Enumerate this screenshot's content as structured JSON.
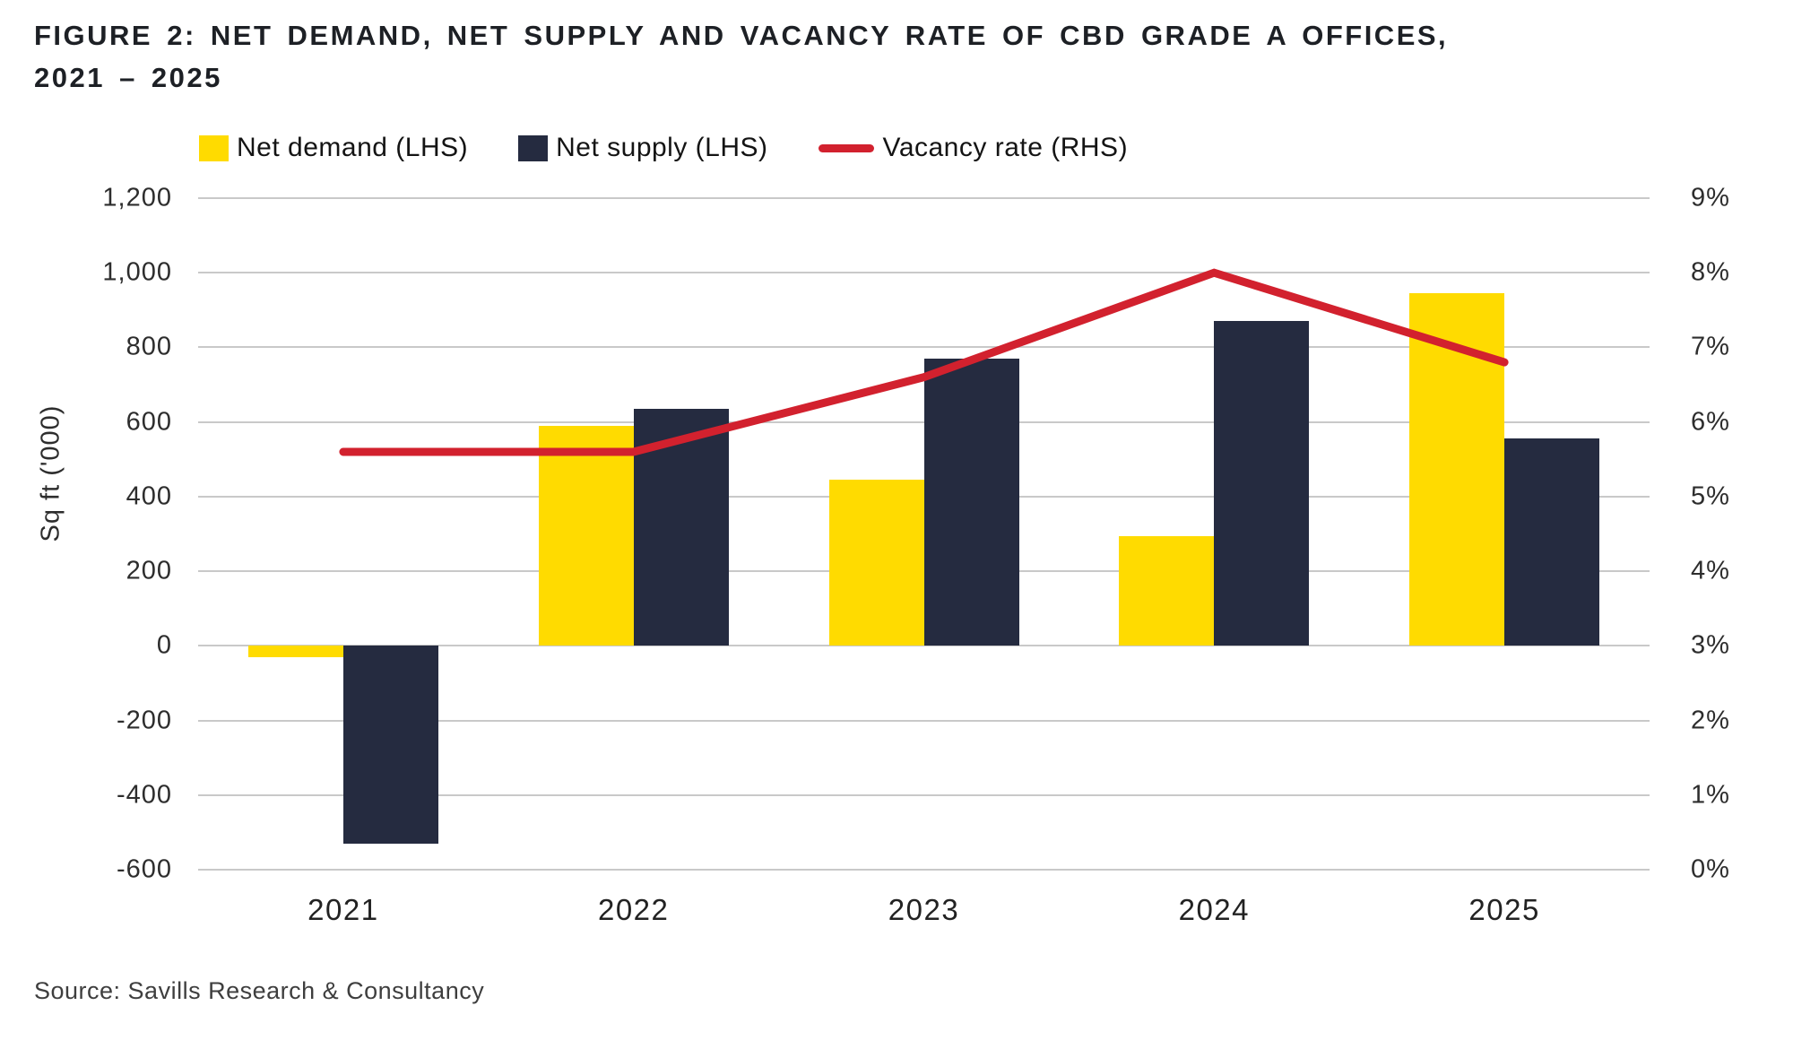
{
  "title": {
    "line1": "FIGURE 2: NET DEMAND, NET SUPPLY AND VACANCY RATE OF CBD GRADE A OFFICES,",
    "line2": "2021 – 2025"
  },
  "source": "Source: Savills Research & Consultancy",
  "chart_data": {
    "type": "bar+line",
    "title": "Net demand, net supply and vacancy rate of CBD Grade A offices, 2021 – 2025",
    "categories": [
      "2021",
      "2022",
      "2023",
      "2024",
      "2025"
    ],
    "series": [
      {
        "name": "Net demand (LHS)",
        "type": "bar",
        "axis": "left",
        "color": "#FFDB00",
        "values": [
          -30,
          590,
          445,
          295,
          945
        ]
      },
      {
        "name": "Net supply (LHS)",
        "type": "bar",
        "axis": "left",
        "color": "#252B40",
        "values": [
          -530,
          635,
          770,
          870,
          555
        ]
      },
      {
        "name": "Vacancy rate (RHS)",
        "type": "line",
        "axis": "right",
        "color": "#D2212E",
        "values": [
          5.6,
          5.6,
          6.6,
          8.0,
          6.8
        ]
      }
    ],
    "left_axis": {
      "title": "Sq ft ('000)",
      "min": -600,
      "max": 1200,
      "step": 200,
      "ticks": [
        "1,200",
        "1,000",
        "800",
        "600",
        "400",
        "200",
        "0",
        "-200",
        "-400",
        "-600"
      ]
    },
    "right_axis": {
      "min": 0,
      "max": 9,
      "step": 1,
      "ticks": [
        "9%",
        "8%",
        "7%",
        "6%",
        "5%",
        "4%",
        "3%",
        "2%",
        "1%",
        "0%"
      ]
    },
    "grid": true,
    "gridline_color": "#c9c9c9",
    "legend_position": "top"
  }
}
